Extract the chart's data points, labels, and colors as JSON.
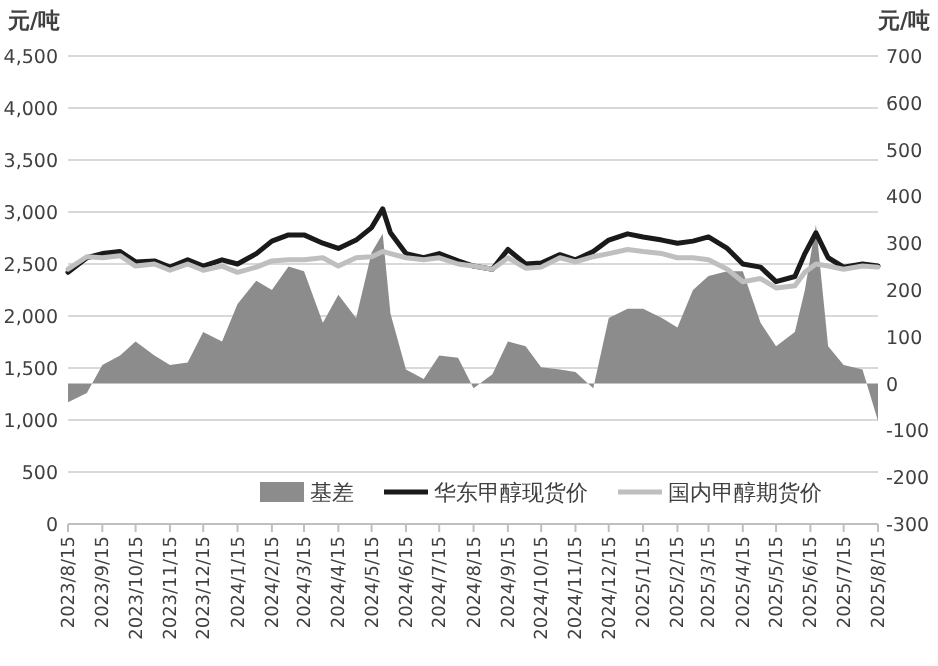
{
  "chart_data": {
    "type": "line",
    "ylabel": "元/吨",
    "y2label": "元/吨",
    "x": [
      "2023-08-15",
      "2023-09-01",
      "2023-09-15",
      "2023-10-01",
      "2023-10-15",
      "2023-11-01",
      "2023-11-15",
      "2023-12-01",
      "2023-12-15",
      "2024-01-01",
      "2024-01-15",
      "2024-02-01",
      "2024-02-15",
      "2024-03-01",
      "2024-03-15",
      "2024-04-01",
      "2024-04-15",
      "2024-05-01",
      "2024-05-15",
      "2024-05-25",
      "2024-06-01",
      "2024-06-15",
      "2024-07-01",
      "2024-07-15",
      "2024-08-01",
      "2024-08-15",
      "2024-09-01",
      "2024-09-15",
      "2024-10-01",
      "2024-10-15",
      "2024-11-01",
      "2024-11-15",
      "2024-12-01",
      "2024-12-15",
      "2025-01-01",
      "2025-01-15",
      "2025-02-01",
      "2025-02-15",
      "2025-03-01",
      "2025-03-15",
      "2025-04-01",
      "2025-04-15",
      "2025-05-01",
      "2025-05-15",
      "2025-06-01",
      "2025-06-10",
      "2025-06-20",
      "2025-07-01",
      "2025-07-15",
      "2025-08-01",
      "2025-08-15"
    ],
    "series": [
      {
        "name": "基差",
        "type": "area",
        "axis": "y2",
        "color": "#8c8c8c",
        "values": [
          -40,
          -20,
          40,
          60,
          90,
          60,
          40,
          45,
          110,
          90,
          170,
          220,
          200,
          250,
          240,
          130,
          190,
          140,
          280,
          320,
          150,
          30,
          10,
          60,
          55,
          -10,
          20,
          90,
          80,
          35,
          30,
          25,
          -10,
          140,
          160,
          160,
          140,
          120,
          200,
          230,
          240,
          240,
          130,
          80,
          110,
          200,
          340,
          80,
          40,
          30,
          -80
        ]
      },
      {
        "name": "华东甲醇现货价",
        "color": "#1a1a1a",
        "values": [
          2420,
          2560,
          2600,
          2620,
          2520,
          2530,
          2470,
          2540,
          2480,
          2540,
          2500,
          2600,
          2720,
          2780,
          2780,
          2700,
          2650,
          2730,
          2850,
          3030,
          2800,
          2600,
          2560,
          2600,
          2530,
          2480,
          2450,
          2640,
          2500,
          2510,
          2590,
          2540,
          2620,
          2730,
          2790,
          2760,
          2730,
          2700,
          2720,
          2760,
          2650,
          2500,
          2470,
          2330,
          2380,
          2600,
          2800,
          2560,
          2470,
          2500,
          2480
        ]
      },
      {
        "name": "国内甲醇期货价",
        "color": "#bfbfbf",
        "values": [
          2450,
          2570,
          2560,
          2580,
          2480,
          2500,
          2440,
          2500,
          2440,
          2480,
          2420,
          2470,
          2530,
          2540,
          2540,
          2560,
          2480,
          2560,
          2570,
          2620,
          2600,
          2560,
          2540,
          2560,
          2500,
          2480,
          2450,
          2560,
          2460,
          2470,
          2560,
          2520,
          2570,
          2600,
          2640,
          2620,
          2600,
          2560,
          2560,
          2540,
          2450,
          2330,
          2360,
          2270,
          2290,
          2420,
          2500,
          2480,
          2450,
          2480,
          2470
        ]
      }
    ],
    "xlim": [
      "2023-08-15",
      "2025-08-15"
    ],
    "xticks": [
      {
        "value": "2023-08-15",
        "label": "2023/8/15"
      },
      {
        "value": "2023-09-15",
        "label": "2023/9/15"
      },
      {
        "value": "2023-10-15",
        "label": "2023/10/15"
      },
      {
        "value": "2023-11-15",
        "label": "2023/11/15"
      },
      {
        "value": "2023-12-15",
        "label": "2023/12/15"
      },
      {
        "value": "2024-01-15",
        "label": "2024/1/15"
      },
      {
        "value": "2024-02-15",
        "label": "2024/2/15"
      },
      {
        "value": "2024-03-15",
        "label": "2024/3/15"
      },
      {
        "value": "2024-04-15",
        "label": "2024/4/15"
      },
      {
        "value": "2024-05-15",
        "label": "2024/5/15"
      },
      {
        "value": "2024-06-15",
        "label": "2024/6/15"
      },
      {
        "value": "2024-07-15",
        "label": "2024/7/15"
      },
      {
        "value": "2024-08-15",
        "label": "2024/8/15"
      },
      {
        "value": "2024-09-15",
        "label": "2024/9/15"
      },
      {
        "value": "2024-10-15",
        "label": "2024/10/15"
      },
      {
        "value": "2024-11-15",
        "label": "2024/11/15"
      },
      {
        "value": "2024-12-15",
        "label": "2024/12/15"
      },
      {
        "value": "2025-01-15",
        "label": "2025/1/15"
      },
      {
        "value": "2025-02-15",
        "label": "2025/2/15"
      },
      {
        "value": "2025-03-15",
        "label": "2025/3/15"
      },
      {
        "value": "2025-04-15",
        "label": "2025/4/15"
      },
      {
        "value": "2025-05-15",
        "label": "2025/5/15"
      },
      {
        "value": "2025-06-15",
        "label": "2025/6/15"
      },
      {
        "value": "2025-07-15",
        "label": "2025/7/15"
      },
      {
        "value": "2025-08-15",
        "label": "2025/8/15"
      }
    ],
    "ylim": [
      0,
      4500
    ],
    "yticks": [
      0,
      {
        "value": 500,
        "label": "500"
      },
      {
        "value": 1000,
        "label": "1,000"
      },
      {
        "value": 1500,
        "label": "1,500"
      },
      {
        "value": 2000,
        "label": "2,000"
      },
      {
        "value": 2500,
        "label": "2,500"
      },
      {
        "value": 3000,
        "label": "3,000"
      },
      {
        "value": 3500,
        "label": "3,500"
      },
      {
        "value": 4000,
        "label": "4,000"
      },
      {
        "value": 4500,
        "label": "4,500"
      }
    ],
    "y2lim": [
      -300,
      700
    ],
    "y2ticks": [
      -300,
      -200,
      -100,
      0,
      100,
      200,
      300,
      400,
      500,
      600,
      700
    ],
    "grid": "y",
    "legend": "bottom",
    "line_style": "solid",
    "marker": "none"
  }
}
